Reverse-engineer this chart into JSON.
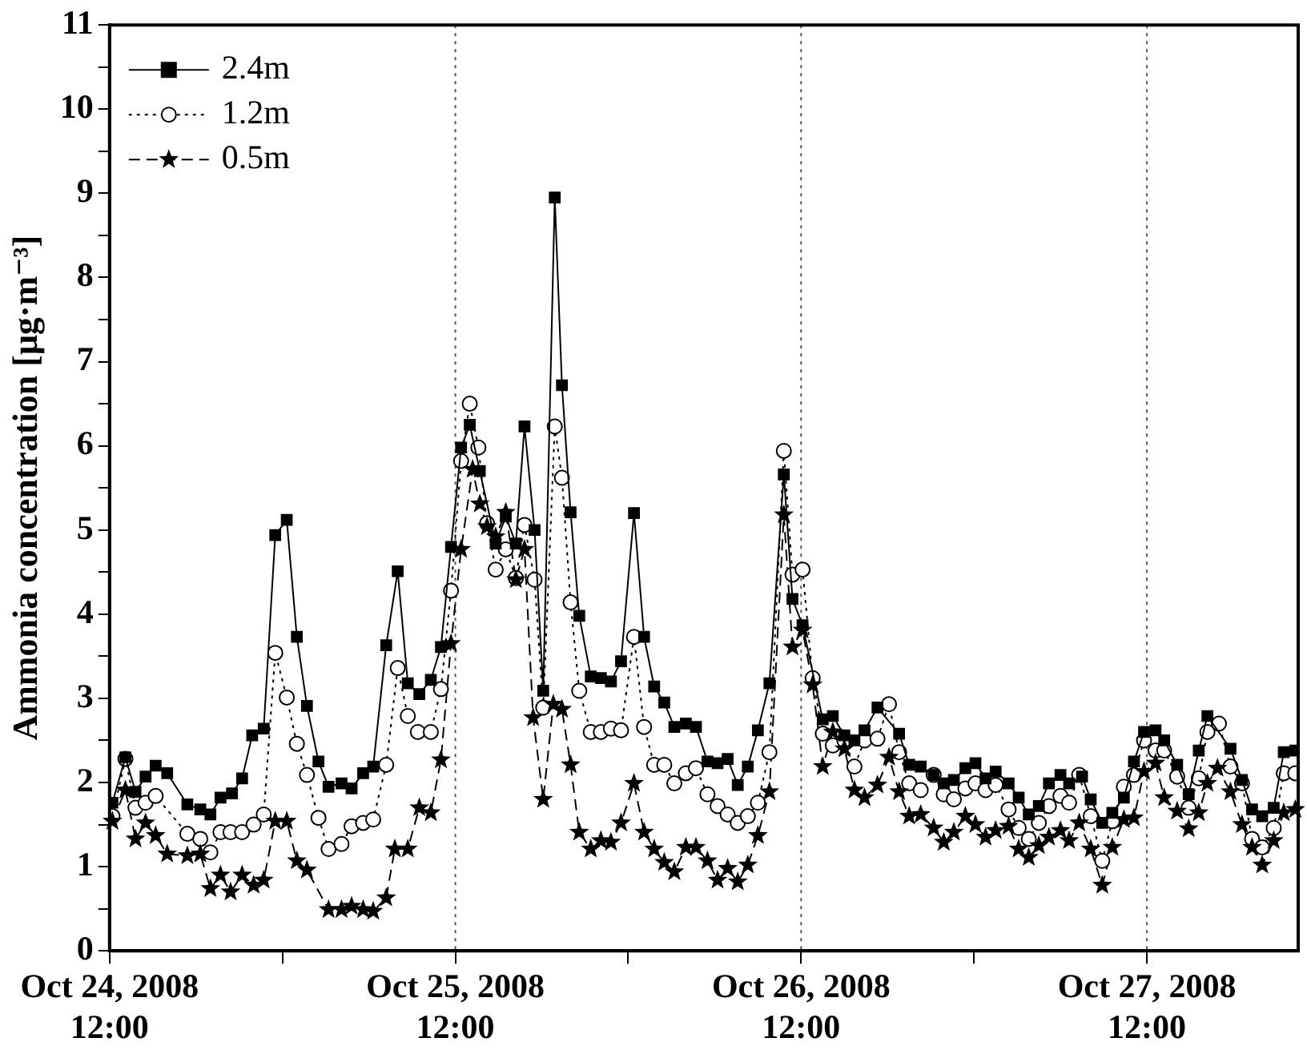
{
  "chart_data": {
    "type": "line",
    "ylabel": "Ammonia concentration [μg·m⁻³]",
    "xlim": [
      "2008-10-24T12:00",
      "2008-10-27T22:30"
    ],
    "ylim": [
      0,
      11
    ],
    "xticks": [
      {
        "value": "2008-10-24T12:00",
        "label": "Oct 24, 2008\n12:00"
      },
      {
        "value": "2008-10-25T00:00",
        "label": null
      },
      {
        "value": "2008-10-25T12:00",
        "label": "Oct 25, 2008\n12:00"
      },
      {
        "value": "2008-10-26T00:00",
        "label": null
      },
      {
        "value": "2008-10-26T12:00",
        "label": "Oct 26, 2008\n12:00"
      },
      {
        "value": "2008-10-27T00:00",
        "label": null
      },
      {
        "value": "2008-10-27T12:00",
        "label": "Oct 27, 2008\n12:00"
      }
    ],
    "yticks": [
      0,
      {
        "value": 0.5,
        "label": null
      },
      1,
      {
        "value": 1.5,
        "label": null
      },
      2,
      {
        "value": 2.5,
        "label": null
      },
      3,
      {
        "value": 3.5,
        "label": null
      },
      4,
      {
        "value": 4.5,
        "label": null
      },
      5,
      {
        "value": 5.5,
        "label": null
      },
      6,
      {
        "value": 6.5,
        "label": null
      },
      7,
      {
        "value": 7.5,
        "label": null
      },
      8,
      {
        "value": 8.5,
        "label": null
      },
      9,
      {
        "value": 9.5,
        "label": null
      },
      10,
      {
        "value": 10.5,
        "label": null
      },
      11
    ],
    "ref_lines": [
      {
        "axis": "x",
        "value": "2008-10-25T12:00",
        "line_style": "dotted",
        "color": "#555555"
      },
      {
        "axis": "x",
        "value": "2008-10-26T12:00",
        "line_style": "dotted",
        "color": "#555555"
      },
      {
        "axis": "x",
        "value": "2008-10-27T12:00",
        "line_style": "dotted",
        "color": "#555555"
      }
    ],
    "legend": "top left",
    "series": [
      {
        "name": "2.4m",
        "color": "#000000",
        "marker": "square",
        "line_style": "solid",
        "x": [
          "2008-10-24T12:12",
          "2008-10-24T13:06",
          "2008-10-24T13:48",
          "2008-10-24T14:30",
          "2008-10-24T15:12",
          "2008-10-24T16:00",
          "2008-10-24T17:24",
          "2008-10-24T18:18",
          "2008-10-24T19:00",
          "2008-10-24T19:42",
          "2008-10-24T20:30",
          "2008-10-24T21:12",
          "2008-10-24T21:54",
          "2008-10-24T22:42",
          "2008-10-24T23:30",
          "2008-10-25T00:18",
          "2008-10-25T01:00",
          "2008-10-25T01:42",
          "2008-10-25T02:30",
          "2008-10-25T03:12",
          "2008-10-25T04:06",
          "2008-10-25T04:48",
          "2008-10-25T05:36",
          "2008-10-25T06:18",
          "2008-10-25T07:12",
          "2008-10-25T08:00",
          "2008-10-25T08:42",
          "2008-10-25T09:30",
          "2008-10-25T10:18",
          "2008-10-25T11:00",
          "2008-10-25T11:42",
          "2008-10-25T12:24",
          "2008-10-25T13:00",
          "2008-10-25T13:42",
          "2008-10-25T14:48",
          "2008-10-25T15:30",
          "2008-10-25T16:12",
          "2008-10-25T16:48",
          "2008-10-25T17:30",
          "2008-10-25T18:06",
          "2008-10-25T18:54",
          "2008-10-25T19:24",
          "2008-10-25T20:00",
          "2008-10-25T20:36",
          "2008-10-25T21:24",
          "2008-10-25T22:06",
          "2008-10-25T22:48",
          "2008-10-25T23:30",
          "2008-10-26T00:24",
          "2008-10-26T01:06",
          "2008-10-26T01:48",
          "2008-10-26T02:30",
          "2008-10-26T03:12",
          "2008-10-26T04:00",
          "2008-10-26T04:42",
          "2008-10-26T05:30",
          "2008-10-26T06:12",
          "2008-10-26T06:54",
          "2008-10-26T07:36",
          "2008-10-26T08:18",
          "2008-10-26T09:00",
          "2008-10-26T09:48",
          "2008-10-26T10:48",
          "2008-10-26T11:24",
          "2008-10-26T12:06",
          "2008-10-26T13:30",
          "2008-10-26T14:12",
          "2008-10-26T15:00",
          "2008-10-26T15:42",
          "2008-10-26T16:24",
          "2008-10-26T17:18",
          "2008-10-26T18:48",
          "2008-10-26T19:30",
          "2008-10-26T20:18",
          "2008-10-26T21:12",
          "2008-10-26T21:54",
          "2008-10-26T22:36",
          "2008-10-26T23:24",
          "2008-10-27T00:06",
          "2008-10-27T00:48",
          "2008-10-27T01:30",
          "2008-10-27T02:24",
          "2008-10-27T03:06",
          "2008-10-27T03:48",
          "2008-10-27T04:30",
          "2008-10-27T05:12",
          "2008-10-27T06:00",
          "2008-10-27T06:36",
          "2008-10-27T07:30",
          "2008-10-27T08:06",
          "2008-10-27T08:54",
          "2008-10-27T09:36",
          "2008-10-27T10:24",
          "2008-10-27T11:06",
          "2008-10-27T11:48",
          "2008-10-27T12:36",
          "2008-10-27T13:12",
          "2008-10-27T14:06",
          "2008-10-27T14:54",
          "2008-10-27T15:36",
          "2008-10-27T16:12",
          "2008-10-27T17:48",
          "2008-10-27T18:36",
          "2008-10-27T19:18",
          "2008-10-27T20:00",
          "2008-10-27T20:48",
          "2008-10-27T21:30",
          "2008-10-27T22:18"
        ],
        "values": [
          1.76,
          2.3,
          1.89,
          2.07,
          2.2,
          2.11,
          1.74,
          1.68,
          1.62,
          1.82,
          1.87,
          2.05,
          2.56,
          2.64,
          4.94,
          5.12,
          3.73,
          2.91,
          2.25,
          1.95,
          1.99,
          1.93,
          2.11,
          2.19,
          3.63,
          4.51,
          3.18,
          3.05,
          3.22,
          3.61,
          4.8,
          5.98,
          6.25,
          5.7,
          4.84,
          5.16,
          4.84,
          6.23,
          5.0,
          3.09,
          8.95,
          6.72,
          5.21,
          3.98,
          3.26,
          3.24,
          3.2,
          3.44,
          5.2,
          3.73,
          3.14,
          2.95,
          2.66,
          2.7,
          2.66,
          2.25,
          2.23,
          2.28,
          1.97,
          2.19,
          2.62,
          3.18,
          5.66,
          4.18,
          3.87,
          2.75,
          2.79,
          2.56,
          2.5,
          2.62,
          2.89,
          2.58,
          2.21,
          2.19,
          2.09,
          1.99,
          2.03,
          2.17,
          2.23,
          2.05,
          2.13,
          1.99,
          1.82,
          1.62,
          1.72,
          1.99,
          2.09,
          1.99,
          2.07,
          1.8,
          1.52,
          1.64,
          1.82,
          2.25,
          2.6,
          2.62,
          2.5,
          2.21,
          1.86,
          2.38,
          2.79,
          2.4,
          2.03,
          1.68,
          1.6,
          1.7,
          2.36,
          2.38
        ]
      },
      {
        "name": "1.2m",
        "color": "#000000",
        "marker": "circle",
        "line_style": "dotted",
        "x": [
          "2008-10-24T12:12",
          "2008-10-24T13:06",
          "2008-10-24T13:48",
          "2008-10-24T14:30",
          "2008-10-24T15:12",
          "2008-10-24T17:24",
          "2008-10-24T18:18",
          "2008-10-24T19:00",
          "2008-10-24T19:42",
          "2008-10-24T20:24",
          "2008-10-24T21:12",
          "2008-10-24T22:00",
          "2008-10-24T22:42",
          "2008-10-24T23:30",
          "2008-10-25T00:18",
          "2008-10-25T01:00",
          "2008-10-25T01:42",
          "2008-10-25T02:30",
          "2008-10-25T03:12",
          "2008-10-25T04:06",
          "2008-10-25T04:48",
          "2008-10-25T05:36",
          "2008-10-25T06:18",
          "2008-10-25T07:12",
          "2008-10-25T08:00",
          "2008-10-25T08:42",
          "2008-10-25T09:24",
          "2008-10-25T10:18",
          "2008-10-25T11:00",
          "2008-10-25T11:42",
          "2008-10-25T12:24",
          "2008-10-25T13:00",
          "2008-10-25T13:36",
          "2008-10-25T14:12",
          "2008-10-25T14:48",
          "2008-10-25T15:30",
          "2008-10-25T16:12",
          "2008-10-25T16:48",
          "2008-10-25T17:30",
          "2008-10-25T18:06",
          "2008-10-25T18:54",
          "2008-10-25T19:24",
          "2008-10-25T20:00",
          "2008-10-25T20:36",
          "2008-10-25T21:24",
          "2008-10-25T22:06",
          "2008-10-25T22:48",
          "2008-10-25T23:30",
          "2008-10-26T00:24",
          "2008-10-26T01:06",
          "2008-10-26T01:48",
          "2008-10-26T02:30",
          "2008-10-26T03:12",
          "2008-10-26T04:00",
          "2008-10-26T04:42",
          "2008-10-26T05:30",
          "2008-10-26T06:12",
          "2008-10-26T06:54",
          "2008-10-26T07:36",
          "2008-10-26T08:18",
          "2008-10-26T09:00",
          "2008-10-26T09:48",
          "2008-10-26T10:48",
          "2008-10-26T11:24",
          "2008-10-26T12:06",
          "2008-10-26T12:48",
          "2008-10-26T13:30",
          "2008-10-26T14:12",
          "2008-10-26T15:00",
          "2008-10-26T15:42",
          "2008-10-26T16:24",
          "2008-10-26T17:18",
          "2008-10-26T18:06",
          "2008-10-26T18:48",
          "2008-10-26T19:30",
          "2008-10-26T20:18",
          "2008-10-26T21:12",
          "2008-10-26T21:54",
          "2008-10-26T22:36",
          "2008-10-26T23:24",
          "2008-10-27T00:06",
          "2008-10-27T00:48",
          "2008-10-27T01:30",
          "2008-10-27T02:24",
          "2008-10-27T03:06",
          "2008-10-27T03:48",
          "2008-10-27T04:30",
          "2008-10-27T05:12",
          "2008-10-27T06:00",
          "2008-10-27T06:36",
          "2008-10-27T07:18",
          "2008-10-27T08:06",
          "2008-10-27T08:54",
          "2008-10-27T09:36",
          "2008-10-27T10:24",
          "2008-10-27T11:06",
          "2008-10-27T11:48",
          "2008-10-27T12:36",
          "2008-10-27T13:12",
          "2008-10-27T14:06",
          "2008-10-27T14:54",
          "2008-10-27T15:36",
          "2008-10-27T16:12",
          "2008-10-27T17:00",
          "2008-10-27T17:48",
          "2008-10-27T18:36",
          "2008-10-27T19:18",
          "2008-10-27T20:00",
          "2008-10-27T20:48",
          "2008-10-27T21:30",
          "2008-10-27T22:18"
        ],
        "values": [
          1.6,
          2.28,
          1.7,
          1.76,
          1.84,
          1.39,
          1.33,
          1.17,
          1.41,
          1.41,
          1.41,
          1.5,
          1.62,
          3.54,
          3.01,
          2.46,
          2.09,
          1.58,
          1.21,
          1.27,
          1.48,
          1.52,
          1.56,
          2.21,
          3.36,
          2.79,
          2.6,
          2.6,
          3.11,
          4.28,
          5.82,
          6.5,
          5.98,
          5.08,
          4.53,
          4.77,
          4.43,
          5.06,
          4.41,
          2.89,
          6.23,
          5.62,
          4.14,
          3.09,
          2.6,
          2.6,
          2.64,
          2.62,
          3.73,
          2.66,
          2.21,
          2.21,
          1.99,
          2.11,
          2.17,
          1.86,
          1.72,
          1.62,
          1.52,
          1.6,
          1.76,
          2.36,
          5.94,
          4.47,
          4.53,
          3.24,
          2.58,
          2.44,
          2.5,
          2.19,
          2.5,
          2.52,
          2.93,
          2.36,
          1.99,
          1.91,
          2.09,
          1.86,
          1.8,
          1.93,
          1.99,
          1.91,
          1.97,
          1.68,
          1.46,
          1.33,
          1.52,
          1.72,
          1.84,
          1.76,
          2.09,
          1.6,
          1.07,
          1.54,
          1.95,
          2.09,
          2.5,
          2.38,
          2.38,
          2.07,
          1.7,
          2.05,
          2.6,
          2.7,
          2.19,
          1.99,
          1.33,
          1.23,
          1.46,
          2.11,
          2.11
        ]
      },
      {
        "name": "0.5m",
        "color": "#000000",
        "marker": "star",
        "line_style": "dashed",
        "x": [
          "2008-10-24T12:12",
          "2008-10-24T13:06",
          "2008-10-24T13:48",
          "2008-10-24T14:30",
          "2008-10-24T15:12",
          "2008-10-24T16:00",
          "2008-10-24T17:24",
          "2008-10-24T18:18",
          "2008-10-24T19:00",
          "2008-10-24T19:42",
          "2008-10-24T20:24",
          "2008-10-24T21:12",
          "2008-10-24T22:00",
          "2008-10-24T22:42",
          "2008-10-24T23:30",
          "2008-10-25T00:18",
          "2008-10-25T01:00",
          "2008-10-25T01:42",
          "2008-10-25T03:12",
          "2008-10-25T04:06",
          "2008-10-25T04:48",
          "2008-10-25T05:36",
          "2008-10-25T06:18",
          "2008-10-25T07:12",
          "2008-10-25T07:48",
          "2008-10-25T08:42",
          "2008-10-25T09:30",
          "2008-10-25T10:18",
          "2008-10-25T11:00",
          "2008-10-25T11:42",
          "2008-10-25T12:24",
          "2008-10-25T13:12",
          "2008-10-25T13:42",
          "2008-10-25T14:12",
          "2008-10-25T14:48",
          "2008-10-25T15:30",
          "2008-10-25T16:12",
          "2008-10-25T16:48",
          "2008-10-25T17:24",
          "2008-10-25T18:06",
          "2008-10-25T18:48",
          "2008-10-25T19:24",
          "2008-10-25T20:00",
          "2008-10-25T20:36",
          "2008-10-25T21:24",
          "2008-10-25T22:06",
          "2008-10-25T22:48",
          "2008-10-25T23:30",
          "2008-10-26T00:24",
          "2008-10-26T01:06",
          "2008-10-26T01:48",
          "2008-10-26T02:30",
          "2008-10-26T03:12",
          "2008-10-26T04:00",
          "2008-10-26T04:42",
          "2008-10-26T05:30",
          "2008-10-26T06:12",
          "2008-10-26T06:54",
          "2008-10-26T07:36",
          "2008-10-26T08:18",
          "2008-10-26T09:00",
          "2008-10-26T09:48",
          "2008-10-26T10:48",
          "2008-10-26T11:24",
          "2008-10-26T12:06",
          "2008-10-26T12:48",
          "2008-10-26T13:30",
          "2008-10-26T14:12",
          "2008-10-26T15:00",
          "2008-10-26T15:42",
          "2008-10-26T16:24",
          "2008-10-26T17:18",
          "2008-10-26T18:06",
          "2008-10-26T18:48",
          "2008-10-26T19:30",
          "2008-10-26T20:18",
          "2008-10-26T21:12",
          "2008-10-26T21:54",
          "2008-10-26T22:36",
          "2008-10-26T23:24",
          "2008-10-27T00:06",
          "2008-10-27T00:48",
          "2008-10-27T01:30",
          "2008-10-27T02:24",
          "2008-10-27T03:06",
          "2008-10-27T03:48",
          "2008-10-27T04:30",
          "2008-10-27T05:12",
          "2008-10-27T06:00",
          "2008-10-27T06:36",
          "2008-10-27T07:18",
          "2008-10-27T08:06",
          "2008-10-27T08:54",
          "2008-10-27T09:36",
          "2008-10-27T10:24",
          "2008-10-27T11:06",
          "2008-10-27T11:48",
          "2008-10-27T12:36",
          "2008-10-27T13:12",
          "2008-10-27T14:06",
          "2008-10-27T14:54",
          "2008-10-27T15:36",
          "2008-10-27T16:12",
          "2008-10-27T16:54",
          "2008-10-27T17:48",
          "2008-10-27T18:36",
          "2008-10-27T19:18",
          "2008-10-27T20:00",
          "2008-10-27T20:48",
          "2008-10-27T21:30",
          "2008-10-27T22:18"
        ],
        "values": [
          1.54,
          1.91,
          1.33,
          1.52,
          1.37,
          1.15,
          1.13,
          1.15,
          0.74,
          0.9,
          0.7,
          0.9,
          0.78,
          0.84,
          1.54,
          1.54,
          1.07,
          0.96,
          0.49,
          0.49,
          0.53,
          0.49,
          0.47,
          0.63,
          1.21,
          1.21,
          1.7,
          1.64,
          2.27,
          3.65,
          4.77,
          5.72,
          5.31,
          5.04,
          4.92,
          5.21,
          4.41,
          4.77,
          2.77,
          1.8,
          2.93,
          2.87,
          2.21,
          1.41,
          1.21,
          1.31,
          1.29,
          1.52,
          1.99,
          1.41,
          1.21,
          1.05,
          0.94,
          1.23,
          1.23,
          1.07,
          0.84,
          0.98,
          0.82,
          1.02,
          1.37,
          1.89,
          5.18,
          3.61,
          3.81,
          3.16,
          2.19,
          2.6,
          2.4,
          1.91,
          1.82,
          1.97,
          2.3,
          1.89,
          1.6,
          1.62,
          1.46,
          1.29,
          1.41,
          1.6,
          1.5,
          1.35,
          1.43,
          1.48,
          1.21,
          1.11,
          1.25,
          1.35,
          1.43,
          1.31,
          1.52,
          1.21,
          0.78,
          1.23,
          1.56,
          1.58,
          2.13,
          2.23,
          1.82,
          1.66,
          1.45,
          1.64,
          1.99,
          2.17,
          1.89,
          1.5,
          1.23,
          1.02,
          1.31,
          1.64,
          1.68
        ]
      }
    ]
  }
}
